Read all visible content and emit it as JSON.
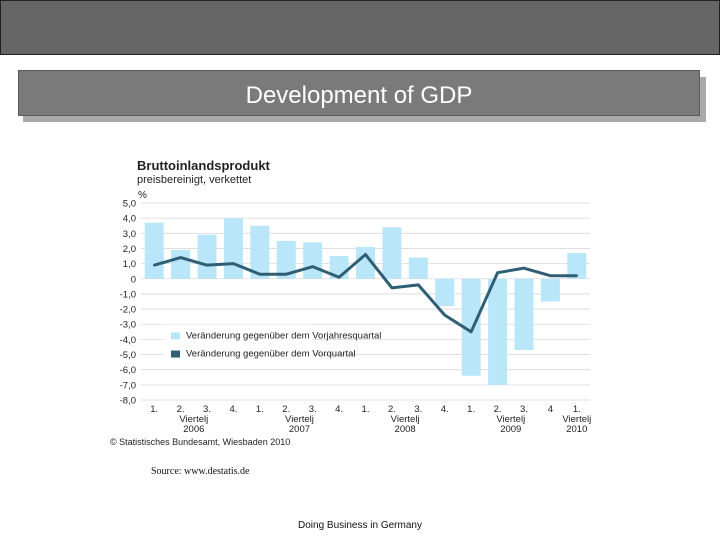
{
  "slide": {
    "title": "Development of GDP",
    "source": "Source: www.destatis.de",
    "footer": "Doing Business in Germany"
  },
  "colors": {
    "bar": "#b9e6f8",
    "line": "#2f5f74",
    "topbar": "#666666",
    "titlebar": "#7a7a7a"
  },
  "chart_data": {
    "type": "bar",
    "title": "Bruttoinlandsprodukt",
    "subtitle": "preisbereinigt, verkettet",
    "ylabel": "%",
    "ylim": [
      -8,
      5
    ],
    "yticks": [
      "5,0",
      "4,0",
      "3,0",
      "2,0",
      "1,0",
      "0",
      "-1,0",
      "-2,0",
      "-3,0",
      "-4,0",
      "-5,0",
      "-6,0",
      "-7,0",
      "-8,0"
    ],
    "categories": [
      "1.",
      "2.",
      "3.",
      "4.",
      "1.",
      "2.",
      "3.",
      "4.",
      "1.",
      "2.",
      "3.",
      "4.",
      "1.",
      "2.",
      "3.",
      "4",
      "1."
    ],
    "groups": [
      {
        "label": "Viertelj",
        "year": "2006"
      },
      {
        "label": "Viertelj",
        "year": "2007"
      },
      {
        "label": "Viertelj",
        "year": "2008"
      },
      {
        "label": "Viertelj",
        "year": "2009"
      },
      {
        "label": "Viertelj",
        "year": "2010"
      }
    ],
    "series": [
      {
        "name": "Veränderung gegenüber dem Vorjahresquartal",
        "type": "bar",
        "values": [
          3.7,
          1.9,
          2.9,
          4.0,
          3.5,
          2.5,
          2.4,
          1.5,
          2.1,
          3.4,
          1.4,
          -1.8,
          -6.4,
          -7.0,
          -4.7,
          -1.5,
          1.7
        ]
      },
      {
        "name": "Veränderung gegenüber dem Vorquartal",
        "type": "line",
        "values": [
          0.9,
          1.4,
          0.9,
          1.0,
          0.3,
          0.3,
          0.8,
          0.1,
          1.6,
          -0.6,
          -0.4,
          -2.4,
          -3.5,
          0.4,
          0.7,
          0.2,
          0.2
        ]
      }
    ],
    "legend_position": "bottom-left",
    "copyright": "© Statistisches Bundesamt, Wiesbaden 2010"
  }
}
